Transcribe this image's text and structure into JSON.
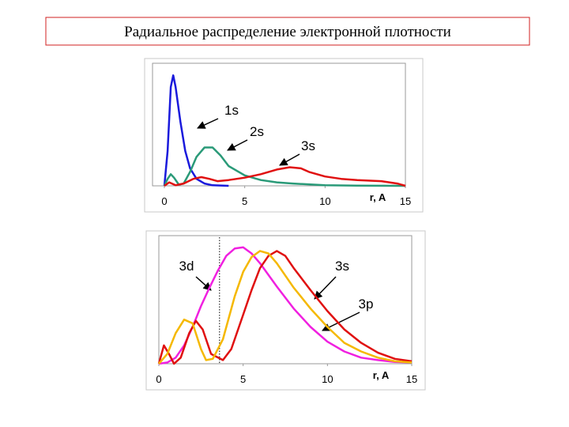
{
  "title": "Радиальное распределение электронной плотности",
  "chart_data": [
    {
      "type": "line",
      "xlabel": "r, A",
      "xlim": [
        0,
        15
      ],
      "xticks": [
        0,
        5,
        10,
        15
      ],
      "ylim": [
        0,
        1
      ],
      "annotations": [
        "1s",
        "2s",
        "3s"
      ],
      "series": [
        {
          "name": "1s",
          "color": "#1a1adc",
          "x": [
            0,
            0.2,
            0.4,
            0.55,
            0.7,
            1.0,
            1.3,
            1.6,
            2,
            2.5,
            3,
            4
          ],
          "values": [
            0,
            0.3,
            0.85,
            0.95,
            0.85,
            0.55,
            0.3,
            0.15,
            0.06,
            0.02,
            0.005,
            0
          ]
        },
        {
          "name": "2s",
          "color": "#2a9a78",
          "x": [
            0,
            0.2,
            0.4,
            0.6,
            0.9,
            1.2,
            1.6,
            2,
            2.5,
            3,
            3.5,
            4,
            5,
            6,
            7,
            8,
            10,
            12,
            15
          ],
          "values": [
            0,
            0.06,
            0.1,
            0.07,
            0.01,
            0.02,
            0.12,
            0.25,
            0.33,
            0.33,
            0.26,
            0.17,
            0.09,
            0.05,
            0.03,
            0.02,
            0.005,
            0.002,
            0
          ]
        },
        {
          "name": "3s",
          "color": "#e01010",
          "x": [
            0,
            0.3,
            0.7,
            1.2,
            1.8,
            2.3,
            2.8,
            3.3,
            4,
            5,
            6,
            7,
            7.8,
            8.5,
            9,
            10,
            11,
            12,
            13.5,
            14.5,
            15
          ],
          "values": [
            0,
            0.03,
            0.005,
            0.02,
            0.06,
            0.075,
            0.06,
            0.04,
            0.05,
            0.07,
            0.1,
            0.14,
            0.16,
            0.15,
            0.12,
            0.08,
            0.06,
            0.05,
            0.04,
            0.02,
            0
          ]
        }
      ]
    },
    {
      "type": "line",
      "xlabel": "r, A",
      "xlim": [
        0,
        15
      ],
      "xticks": [
        0,
        5,
        10,
        15
      ],
      "ylim": [
        0,
        1
      ],
      "vline": 3.6,
      "annotations": [
        "3d",
        "3s",
        "3p"
      ],
      "series": [
        {
          "name": "3d",
          "color": "#f020e0",
          "x": [
            0,
            0.5,
            1,
            1.5,
            2,
            2.5,
            3,
            3.5,
            4,
            4.5,
            5,
            5.5,
            6,
            7,
            8,
            9,
            10,
            11,
            12,
            13,
            14,
            15
          ],
          "values": [
            0,
            0.01,
            0.05,
            0.15,
            0.3,
            0.47,
            0.62,
            0.76,
            0.88,
            0.94,
            0.95,
            0.9,
            0.82,
            0.63,
            0.45,
            0.3,
            0.18,
            0.1,
            0.05,
            0.03,
            0.015,
            0.01
          ]
        },
        {
          "name": "3s",
          "color": "#e01010",
          "x": [
            0,
            0.3,
            0.6,
            0.9,
            1.3,
            1.8,
            2.2,
            2.6,
            3.1,
            3.8,
            4.3,
            5,
            5.5,
            6,
            6.5,
            7,
            7.5,
            8,
            9,
            10,
            11,
            12,
            13,
            14,
            15
          ],
          "values": [
            0,
            0.15,
            0.08,
            0.0,
            0.05,
            0.25,
            0.35,
            0.28,
            0.08,
            0.03,
            0.12,
            0.4,
            0.6,
            0.78,
            0.88,
            0.92,
            0.88,
            0.78,
            0.6,
            0.43,
            0.28,
            0.17,
            0.09,
            0.04,
            0.02
          ]
        },
        {
          "name": "3p",
          "color": "#f5b800",
          "x": [
            0,
            0.5,
            1,
            1.5,
            2,
            2.5,
            2.8,
            3.2,
            3.8,
            4.5,
            5,
            5.5,
            6,
            6.5,
            7,
            8,
            9,
            10,
            11,
            12,
            13,
            14,
            15
          ],
          "values": [
            0,
            0.08,
            0.25,
            0.36,
            0.33,
            0.12,
            0.03,
            0.04,
            0.2,
            0.55,
            0.75,
            0.87,
            0.92,
            0.9,
            0.82,
            0.62,
            0.45,
            0.3,
            0.17,
            0.1,
            0.05,
            0.02,
            0.01
          ]
        }
      ]
    }
  ]
}
